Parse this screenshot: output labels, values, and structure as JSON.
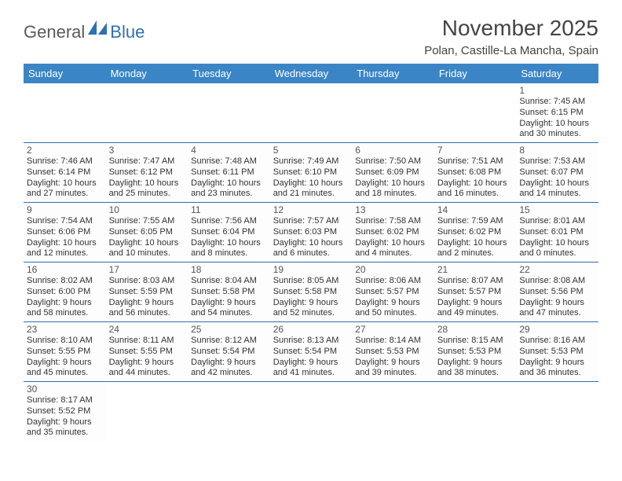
{
  "logo": {
    "part1": "General",
    "part2": "Blue"
  },
  "title": "November 2025",
  "location": "Polan, Castille-La Mancha, Spain",
  "colors": {
    "header_bg": "#3b85c6",
    "header_text": "#ffffff",
    "border": "#2f6fb3",
    "logo_gray": "#5a5a5a",
    "logo_blue": "#2f6fb3"
  },
  "weekdays": [
    "Sunday",
    "Monday",
    "Tuesday",
    "Wednesday",
    "Thursday",
    "Friday",
    "Saturday"
  ],
  "weeks": [
    [
      null,
      null,
      null,
      null,
      null,
      null,
      {
        "n": "1",
        "sunrise": "Sunrise: 7:45 AM",
        "sunset": "Sunset: 6:15 PM",
        "day1": "Daylight: 10 hours",
        "day2": "and 30 minutes."
      }
    ],
    [
      {
        "n": "2",
        "sunrise": "Sunrise: 7:46 AM",
        "sunset": "Sunset: 6:14 PM",
        "day1": "Daylight: 10 hours",
        "day2": "and 27 minutes."
      },
      {
        "n": "3",
        "sunrise": "Sunrise: 7:47 AM",
        "sunset": "Sunset: 6:12 PM",
        "day1": "Daylight: 10 hours",
        "day2": "and 25 minutes."
      },
      {
        "n": "4",
        "sunrise": "Sunrise: 7:48 AM",
        "sunset": "Sunset: 6:11 PM",
        "day1": "Daylight: 10 hours",
        "day2": "and 23 minutes."
      },
      {
        "n": "5",
        "sunrise": "Sunrise: 7:49 AM",
        "sunset": "Sunset: 6:10 PM",
        "day1": "Daylight: 10 hours",
        "day2": "and 21 minutes."
      },
      {
        "n": "6",
        "sunrise": "Sunrise: 7:50 AM",
        "sunset": "Sunset: 6:09 PM",
        "day1": "Daylight: 10 hours",
        "day2": "and 18 minutes."
      },
      {
        "n": "7",
        "sunrise": "Sunrise: 7:51 AM",
        "sunset": "Sunset: 6:08 PM",
        "day1": "Daylight: 10 hours",
        "day2": "and 16 minutes."
      },
      {
        "n": "8",
        "sunrise": "Sunrise: 7:53 AM",
        "sunset": "Sunset: 6:07 PM",
        "day1": "Daylight: 10 hours",
        "day2": "and 14 minutes."
      }
    ],
    [
      {
        "n": "9",
        "sunrise": "Sunrise: 7:54 AM",
        "sunset": "Sunset: 6:06 PM",
        "day1": "Daylight: 10 hours",
        "day2": "and 12 minutes."
      },
      {
        "n": "10",
        "sunrise": "Sunrise: 7:55 AM",
        "sunset": "Sunset: 6:05 PM",
        "day1": "Daylight: 10 hours",
        "day2": "and 10 minutes."
      },
      {
        "n": "11",
        "sunrise": "Sunrise: 7:56 AM",
        "sunset": "Sunset: 6:04 PM",
        "day1": "Daylight: 10 hours",
        "day2": "and 8 minutes."
      },
      {
        "n": "12",
        "sunrise": "Sunrise: 7:57 AM",
        "sunset": "Sunset: 6:03 PM",
        "day1": "Daylight: 10 hours",
        "day2": "and 6 minutes."
      },
      {
        "n": "13",
        "sunrise": "Sunrise: 7:58 AM",
        "sunset": "Sunset: 6:02 PM",
        "day1": "Daylight: 10 hours",
        "day2": "and 4 minutes."
      },
      {
        "n": "14",
        "sunrise": "Sunrise: 7:59 AM",
        "sunset": "Sunset: 6:02 PM",
        "day1": "Daylight: 10 hours",
        "day2": "and 2 minutes."
      },
      {
        "n": "15",
        "sunrise": "Sunrise: 8:01 AM",
        "sunset": "Sunset: 6:01 PM",
        "day1": "Daylight: 10 hours",
        "day2": "and 0 minutes."
      }
    ],
    [
      {
        "n": "16",
        "sunrise": "Sunrise: 8:02 AM",
        "sunset": "Sunset: 6:00 PM",
        "day1": "Daylight: 9 hours",
        "day2": "and 58 minutes."
      },
      {
        "n": "17",
        "sunrise": "Sunrise: 8:03 AM",
        "sunset": "Sunset: 5:59 PM",
        "day1": "Daylight: 9 hours",
        "day2": "and 56 minutes."
      },
      {
        "n": "18",
        "sunrise": "Sunrise: 8:04 AM",
        "sunset": "Sunset: 5:58 PM",
        "day1": "Daylight: 9 hours",
        "day2": "and 54 minutes."
      },
      {
        "n": "19",
        "sunrise": "Sunrise: 8:05 AM",
        "sunset": "Sunset: 5:58 PM",
        "day1": "Daylight: 9 hours",
        "day2": "and 52 minutes."
      },
      {
        "n": "20",
        "sunrise": "Sunrise: 8:06 AM",
        "sunset": "Sunset: 5:57 PM",
        "day1": "Daylight: 9 hours",
        "day2": "and 50 minutes."
      },
      {
        "n": "21",
        "sunrise": "Sunrise: 8:07 AM",
        "sunset": "Sunset: 5:57 PM",
        "day1": "Daylight: 9 hours",
        "day2": "and 49 minutes."
      },
      {
        "n": "22",
        "sunrise": "Sunrise: 8:08 AM",
        "sunset": "Sunset: 5:56 PM",
        "day1": "Daylight: 9 hours",
        "day2": "and 47 minutes."
      }
    ],
    [
      {
        "n": "23",
        "sunrise": "Sunrise: 8:10 AM",
        "sunset": "Sunset: 5:55 PM",
        "day1": "Daylight: 9 hours",
        "day2": "and 45 minutes."
      },
      {
        "n": "24",
        "sunrise": "Sunrise: 8:11 AM",
        "sunset": "Sunset: 5:55 PM",
        "day1": "Daylight: 9 hours",
        "day2": "and 44 minutes."
      },
      {
        "n": "25",
        "sunrise": "Sunrise: 8:12 AM",
        "sunset": "Sunset: 5:54 PM",
        "day1": "Daylight: 9 hours",
        "day2": "and 42 minutes."
      },
      {
        "n": "26",
        "sunrise": "Sunrise: 8:13 AM",
        "sunset": "Sunset: 5:54 PM",
        "day1": "Daylight: 9 hours",
        "day2": "and 41 minutes."
      },
      {
        "n": "27",
        "sunrise": "Sunrise: 8:14 AM",
        "sunset": "Sunset: 5:53 PM",
        "day1": "Daylight: 9 hours",
        "day2": "and 39 minutes."
      },
      {
        "n": "28",
        "sunrise": "Sunrise: 8:15 AM",
        "sunset": "Sunset: 5:53 PM",
        "day1": "Daylight: 9 hours",
        "day2": "and 38 minutes."
      },
      {
        "n": "29",
        "sunrise": "Sunrise: 8:16 AM",
        "sunset": "Sunset: 5:53 PM",
        "day1": "Daylight: 9 hours",
        "day2": "and 36 minutes."
      }
    ],
    [
      {
        "n": "30",
        "sunrise": "Sunrise: 8:17 AM",
        "sunset": "Sunset: 5:52 PM",
        "day1": "Daylight: 9 hours",
        "day2": "and 35 minutes."
      },
      null,
      null,
      null,
      null,
      null,
      null
    ]
  ]
}
